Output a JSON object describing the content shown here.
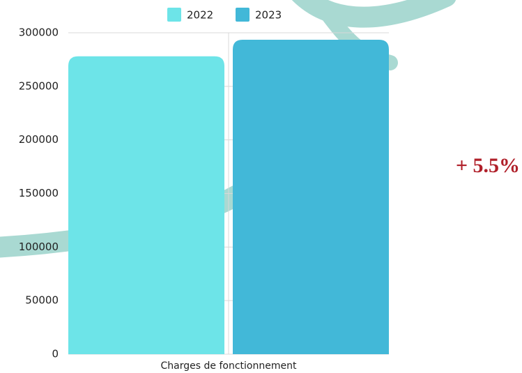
{
  "chart_data": {
    "type": "bar",
    "categories": [
      "Charges de fonctionnement"
    ],
    "series": [
      {
        "name": "2022",
        "color": "#6de4e8",
        "values": [
          278000
        ]
      },
      {
        "name": "2023",
        "color": "#42b8d8",
        "values": [
          293500
        ]
      }
    ],
    "ylim": [
      0,
      300000
    ],
    "yticks": [
      0,
      50000,
      100000,
      150000,
      200000,
      250000,
      300000
    ],
    "grid": true,
    "legend": "top",
    "annotation": "+ 5.5%"
  }
}
